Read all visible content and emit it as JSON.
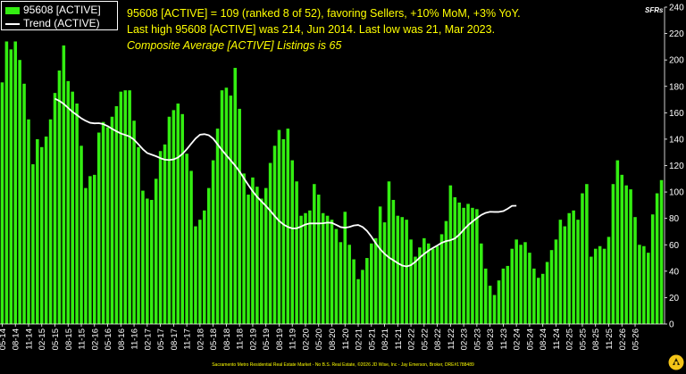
{
  "annotations": {
    "line1": "95608 [ACTIVE] = 109 (ranked 8 of 52), favoring Sellers, +10% MoM, +3% YoY.",
    "line2": "Last high 95608 [ACTIVE] was 214, Jun 2014. Last low was 21, Mar 2023.",
    "line3": "Composite Average [ACTIVE] Listings is 65"
  },
  "unit_label": "SFRs",
  "footer": "Sacramento Metro Residential Real Estate Market - No B.S. Real Estate, ©2026 JD Wise, Inc - Jay Emerson, Broker, DRE#1788489",
  "colors": {
    "background": "#000000",
    "bars": "#33ee11",
    "trend": "#ffffff",
    "annotation": "#ffff00",
    "axis": "#ffffff",
    "logo": "#f5c518"
  },
  "chart_data": {
    "type": "bar",
    "ylim": [
      0,
      240
    ],
    "yticks": [
      0,
      20,
      40,
      60,
      80,
      100,
      120,
      140,
      160,
      180,
      200,
      220,
      240
    ],
    "legend_placement": "top-left",
    "grid": false,
    "x_tick_labels": [
      "05-14",
      "08-14",
      "11-14",
      "02-15",
      "05-15",
      "08-15",
      "11-15",
      "02-16",
      "05-16",
      "08-16",
      "11-16",
      "02-17",
      "05-17",
      "08-17",
      "11-17",
      "02-18",
      "05-18",
      "08-18",
      "11-18",
      "02-19",
      "05-19",
      "08-19",
      "11-19",
      "02-20",
      "05-20",
      "08-20",
      "11-20",
      "02-21",
      "05-21",
      "08-21",
      "11-21",
      "02-22",
      "05-22",
      "08-22",
      "11-22",
      "02-23",
      "05-23",
      "08-23",
      "11-23",
      "02-24",
      "05-24",
      "08-24",
      "11-24",
      "02-25",
      "05-25",
      "08-25",
      "11-25",
      "02-26",
      "05-26"
    ],
    "series": [
      {
        "name": "95608 [ACTIVE]",
        "kind": "bar",
        "values": [
          183,
          214,
          208,
          214,
          200,
          182,
          155,
          121,
          140,
          134,
          142,
          155,
          175,
          192,
          211,
          184,
          176,
          167,
          135,
          103,
          112,
          113,
          145,
          153,
          149,
          157,
          165,
          176,
          177,
          177,
          154,
          134,
          101,
          95,
          94,
          110,
          131,
          136,
          157,
          162,
          167,
          159,
          129,
          116,
          74,
          79,
          86,
          103,
          124,
          148,
          177,
          179,
          173,
          194,
          163,
          114,
          98,
          111,
          104,
          95,
          103,
          122,
          135,
          147,
          140,
          148,
          124,
          108,
          82,
          84,
          86,
          106,
          98,
          84,
          82,
          79,
          72,
          62,
          85,
          60,
          49,
          34,
          41,
          50,
          61,
          65,
          89,
          77,
          108,
          94,
          82,
          81,
          79,
          64,
          51,
          58,
          65,
          61,
          57,
          59,
          68,
          78,
          105,
          96,
          92,
          88,
          91,
          88,
          87,
          61,
          42,
          29,
          22,
          33,
          42,
          44,
          57,
          64,
          60,
          62,
          54,
          42,
          35,
          38,
          47,
          56,
          64,
          79,
          74,
          84,
          86,
          79,
          99,
          106,
          51,
          57,
          59,
          57,
          66,
          106,
          124,
          113,
          105,
          102,
          81,
          60,
          59,
          54,
          83,
          99,
          109
        ]
      },
      {
        "name": "Trend (ACTIVE)",
        "kind": "line",
        "start_index": 12,
        "values": [
          170.7,
          169.0,
          166.7,
          163.7,
          160.7,
          158.3,
          155.8,
          153.9,
          152.4,
          152.0,
          152.1,
          151.4,
          149.9,
          147.8,
          146.0,
          144.3,
          143.2,
          142.0,
          139.6,
          136.1,
          132.4,
          129.5,
          128.3,
          127.1,
          125.6,
          124.5,
          124.2,
          124.7,
          126.1,
          128.8,
          132.4,
          136.5,
          140.5,
          143.4,
          143.8,
          143.0,
          140.4,
          136.1,
          131.8,
          127.8,
          123.9,
          120.0,
          115.5,
          110.4,
          105.3,
          100.5,
          96.3,
          92.9,
          89.5,
          85.8,
          81.8,
          78.1,
          75.4,
          73.5,
          72.4,
          72.5,
          73.8,
          75.4,
          76.2,
          76.2,
          76.2,
          76.3,
          76.8,
          76.6,
          75.1,
          73.4,
          72.9,
          73.5,
          74.6,
          75.0,
          73.5,
          70.5,
          66.2,
          61.2,
          56.7,
          53.2,
          50.4,
          48.3,
          46.1,
          44.3,
          43.6,
          44.6,
          47.1,
          50.3,
          53.1,
          55.5,
          57.6,
          59.5,
          61.5,
          62.8,
          63.5,
          64.8,
          67.7,
          71.4,
          74.8,
          77.6,
          80.2,
          82.6,
          84.2,
          85.0,
          84.9,
          84.9,
          85.5,
          87.3,
          89.5,
          89.6
        ]
      }
    ]
  }
}
